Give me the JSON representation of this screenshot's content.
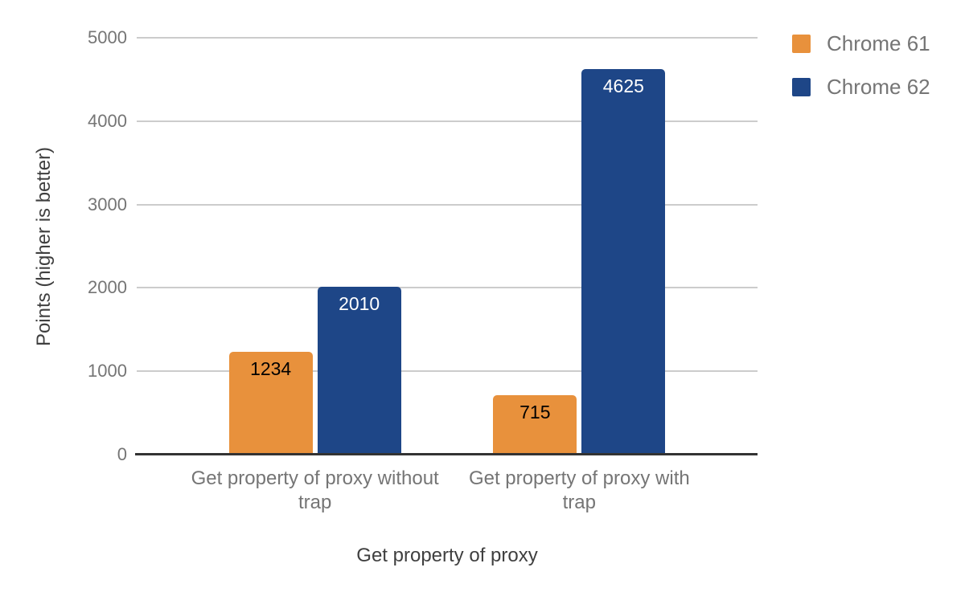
{
  "chart_data": {
    "type": "bar",
    "title": "",
    "categories": [
      "Get property of proxy without trap",
      "Get property of proxy with trap"
    ],
    "series": [
      {
        "name": "Chrome 61",
        "color": "#e8913c",
        "value_label_color": "#000000",
        "values": [
          1234,
          715
        ]
      },
      {
        "name": "Chrome 62",
        "color": "#1e4687",
        "value_label_color": "#ffffff",
        "values": [
          2010,
          4625
        ]
      }
    ],
    "xlabel": "Get property of proxy",
    "ylabel": "Points (higher is better)",
    "ylim": [
      0,
      5000
    ],
    "yticks": [
      0,
      1000,
      2000,
      3000,
      4000,
      5000
    ],
    "grid": true,
    "value_labels_shown": true,
    "legend": {
      "position": "top-right",
      "entries": [
        "Chrome 61",
        "Chrome 62"
      ]
    },
    "colors": {
      "grid": "#cccccc",
      "baseline": "#333333",
      "tick_text": "#757575",
      "category_text": "#757575",
      "axis_title_text": "#3f3f3f",
      "legend_text": "#757575",
      "background": "#ffffff"
    }
  }
}
